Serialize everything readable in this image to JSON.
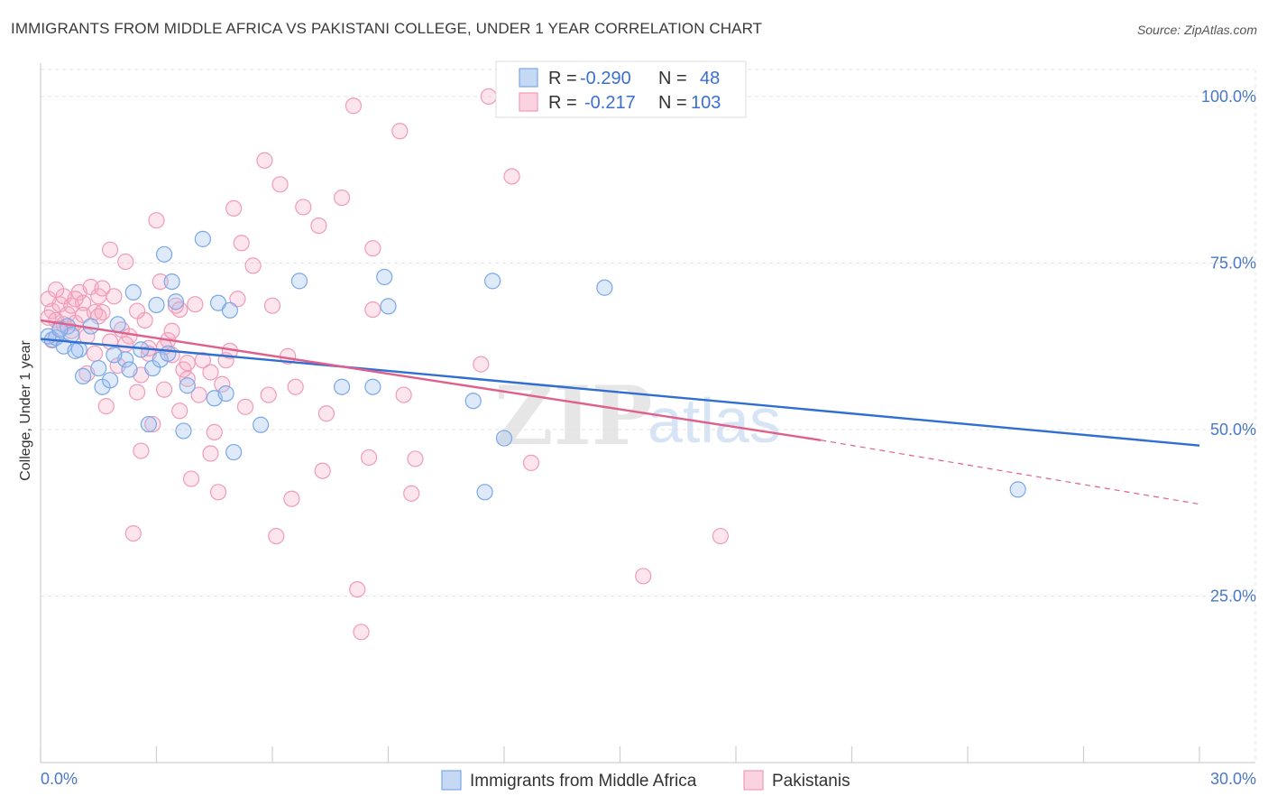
{
  "title": "IMMIGRANTS FROM MIDDLE AFRICA VS PAKISTANI COLLEGE, UNDER 1 YEAR CORRELATION CHART",
  "source": "Source: ZipAtlas.com",
  "watermark": {
    "zip": "ZIP",
    "atlas": "atlas"
  },
  "legend_top": [
    {
      "r_label": "R =",
      "r_value": "-0.290",
      "n_label": "N =",
      "n_value": "48",
      "color": "#7aa7e8"
    },
    {
      "r_label": "R =",
      "r_value": "-0.217",
      "n_label": "N =",
      "n_value": "103",
      "color": "#f09bb8"
    }
  ],
  "legend_bottom": [
    {
      "label": "Immigrants from Middle Africa",
      "color": "#7aa7e8"
    },
    {
      "label": "Pakistanis",
      "color": "#f09bb8"
    }
  ],
  "chart_data": {
    "type": "scatter",
    "title": "IMMIGRANTS FROM MIDDLE AFRICA VS PAKISTANI COLLEGE, UNDER 1 YEAR CORRELATION CHART",
    "xlabel": "",
    "ylabel": "College, Under 1 year",
    "xlim": [
      0,
      30
    ],
    "ylim": [
      0,
      105
    ],
    "x_tick_labels": [
      "0.0%",
      "30.0%"
    ],
    "y_ticks": [
      25,
      50,
      75,
      100
    ],
    "y_tick_labels": [
      "25.0%",
      "50.0%",
      "75.0%",
      "100.0%"
    ],
    "grid": true,
    "legend_position": "top-center",
    "series": [
      {
        "name": "Immigrants from Middle Africa",
        "color": "#7aa7e8",
        "line_color": "#2f6fd1",
        "trend": {
          "x0": 0,
          "y0": 63.6,
          "x1": 30,
          "y1": 47.6
        },
        "points": [
          [
            0.3,
            63.5
          ],
          [
            0.4,
            63.8
          ],
          [
            0.6,
            62.5
          ],
          [
            0.7,
            65.5
          ],
          [
            0.8,
            64.2
          ],
          [
            1.0,
            62.0
          ],
          [
            1.1,
            58.0
          ],
          [
            1.3,
            65.5
          ],
          [
            1.5,
            59.2
          ],
          [
            1.6,
            56.4
          ],
          [
            1.8,
            57.4
          ],
          [
            2.0,
            65.8
          ],
          [
            2.2,
            60.5
          ],
          [
            2.3,
            59.0
          ],
          [
            2.4,
            70.6
          ],
          [
            2.6,
            62.0
          ],
          [
            2.8,
            50.8
          ],
          [
            2.9,
            59.2
          ],
          [
            3.0,
            68.7
          ],
          [
            3.1,
            60.5
          ],
          [
            3.2,
            76.3
          ],
          [
            3.4,
            72.2
          ],
          [
            3.5,
            69.2
          ],
          [
            3.7,
            49.8
          ],
          [
            3.8,
            56.6
          ],
          [
            4.2,
            78.6
          ],
          [
            4.5,
            54.7
          ],
          [
            4.6,
            69.0
          ],
          [
            4.8,
            55.4
          ],
          [
            4.9,
            67.9
          ],
          [
            5.0,
            46.6
          ],
          [
            5.7,
            50.7
          ],
          [
            6.7,
            72.3
          ],
          [
            7.8,
            56.4
          ],
          [
            8.6,
            56.4
          ],
          [
            8.9,
            72.9
          ],
          [
            9.0,
            68.5
          ],
          [
            11.2,
            54.3
          ],
          [
            11.5,
            40.6
          ],
          [
            11.7,
            72.3
          ],
          [
            12.0,
            48.7
          ],
          [
            14.6,
            71.3
          ],
          [
            25.3,
            41.0
          ],
          [
            0.2,
            64.0
          ],
          [
            0.5,
            65.0
          ],
          [
            0.9,
            61.8
          ],
          [
            1.9,
            61.2
          ],
          [
            3.3,
            61.4
          ]
        ]
      },
      {
        "name": "Pakistanis",
        "color": "#f09bb8",
        "line_color": "#e0608c",
        "trend": {
          "x0": 0,
          "y0": 66.4,
          "x1": 20.2,
          "y1": 48.4
        },
        "trend_dashed": {
          "x0": 20.2,
          "y0": 48.4,
          "x1": 30,
          "y1": 38.8
        },
        "points": [
          [
            0.2,
            69.6
          ],
          [
            0.3,
            67.8
          ],
          [
            0.4,
            66.4
          ],
          [
            0.5,
            68.8
          ],
          [
            0.5,
            65.2
          ],
          [
            0.6,
            70.0
          ],
          [
            0.7,
            67.3
          ],
          [
            0.8,
            68.6
          ],
          [
            0.9,
            66.0
          ],
          [
            1.0,
            70.6
          ],
          [
            1.1,
            69.0
          ],
          [
            1.2,
            64.0
          ],
          [
            1.3,
            71.4
          ],
          [
            1.4,
            67.6
          ],
          [
            1.4,
            61.4
          ],
          [
            1.5,
            70.0
          ],
          [
            1.6,
            67.6
          ],
          [
            1.7,
            53.5
          ],
          [
            1.8,
            77.0
          ],
          [
            1.9,
            70.0
          ],
          [
            2.0,
            59.6
          ],
          [
            2.1,
            65.0
          ],
          [
            2.2,
            75.2
          ],
          [
            2.3,
            64.0
          ],
          [
            2.4,
            34.4
          ],
          [
            2.5,
            55.6
          ],
          [
            2.6,
            46.8
          ],
          [
            2.7,
            66.4
          ],
          [
            2.8,
            61.4
          ],
          [
            2.9,
            50.8
          ],
          [
            3.0,
            81.4
          ],
          [
            3.1,
            72.2
          ],
          [
            3.2,
            56.0
          ],
          [
            3.3,
            63.4
          ],
          [
            3.4,
            61.2
          ],
          [
            3.5,
            68.6
          ],
          [
            3.6,
            52.8
          ],
          [
            3.7,
            59.0
          ],
          [
            3.8,
            57.6
          ],
          [
            3.9,
            42.6
          ],
          [
            4.0,
            68.8
          ],
          [
            4.2,
            60.4
          ],
          [
            4.4,
            46.4
          ],
          [
            4.5,
            49.6
          ],
          [
            4.6,
            40.6
          ],
          [
            4.7,
            56.8
          ],
          [
            4.8,
            60.4
          ],
          [
            5.0,
            83.2
          ],
          [
            5.1,
            69.6
          ],
          [
            5.2,
            78.0
          ],
          [
            5.3,
            53.4
          ],
          [
            5.5,
            74.6
          ],
          [
            5.8,
            90.4
          ],
          [
            5.9,
            55.2
          ],
          [
            6.0,
            68.6
          ],
          [
            6.1,
            34.0
          ],
          [
            6.2,
            86.8
          ],
          [
            6.4,
            61.0
          ],
          [
            6.5,
            39.6
          ],
          [
            6.6,
            56.4
          ],
          [
            6.8,
            83.4
          ],
          [
            7.2,
            80.6
          ],
          [
            7.3,
            43.8
          ],
          [
            7.4,
            52.4
          ],
          [
            7.8,
            84.8
          ],
          [
            8.1,
            98.6
          ],
          [
            8.2,
            26.0
          ],
          [
            8.3,
            19.6
          ],
          [
            8.5,
            45.8
          ],
          [
            8.6,
            77.2
          ],
          [
            8.6,
            68.0
          ],
          [
            9.3,
            94.8
          ],
          [
            9.4,
            55.2
          ],
          [
            9.6,
            40.4
          ],
          [
            9.7,
            45.6
          ],
          [
            11.4,
            59.8
          ],
          [
            11.6,
            100.0
          ],
          [
            12.2,
            88.0
          ],
          [
            12.7,
            45.0
          ],
          [
            15.6,
            28.0
          ],
          [
            17.6,
            34.0
          ],
          [
            1.1,
            67.2
          ],
          [
            0.4,
            71.0
          ],
          [
            0.9,
            69.6
          ],
          [
            1.6,
            71.2
          ],
          [
            2.5,
            67.8
          ],
          [
            2.8,
            62.2
          ],
          [
            3.2,
            62.4
          ],
          [
            3.4,
            64.8
          ],
          [
            3.8,
            60.0
          ],
          [
            4.1,
            55.2
          ],
          [
            4.4,
            58.6
          ],
          [
            1.2,
            58.4
          ],
          [
            1.8,
            63.2
          ],
          [
            2.2,
            62.8
          ],
          [
            0.6,
            65.8
          ],
          [
            0.3,
            63.4
          ],
          [
            0.8,
            64.8
          ],
          [
            1.5,
            67.0
          ],
          [
            2.6,
            58.2
          ],
          [
            3.6,
            68.0
          ],
          [
            4.9,
            61.8
          ],
          [
            0.2,
            66.8
          ]
        ]
      }
    ]
  }
}
